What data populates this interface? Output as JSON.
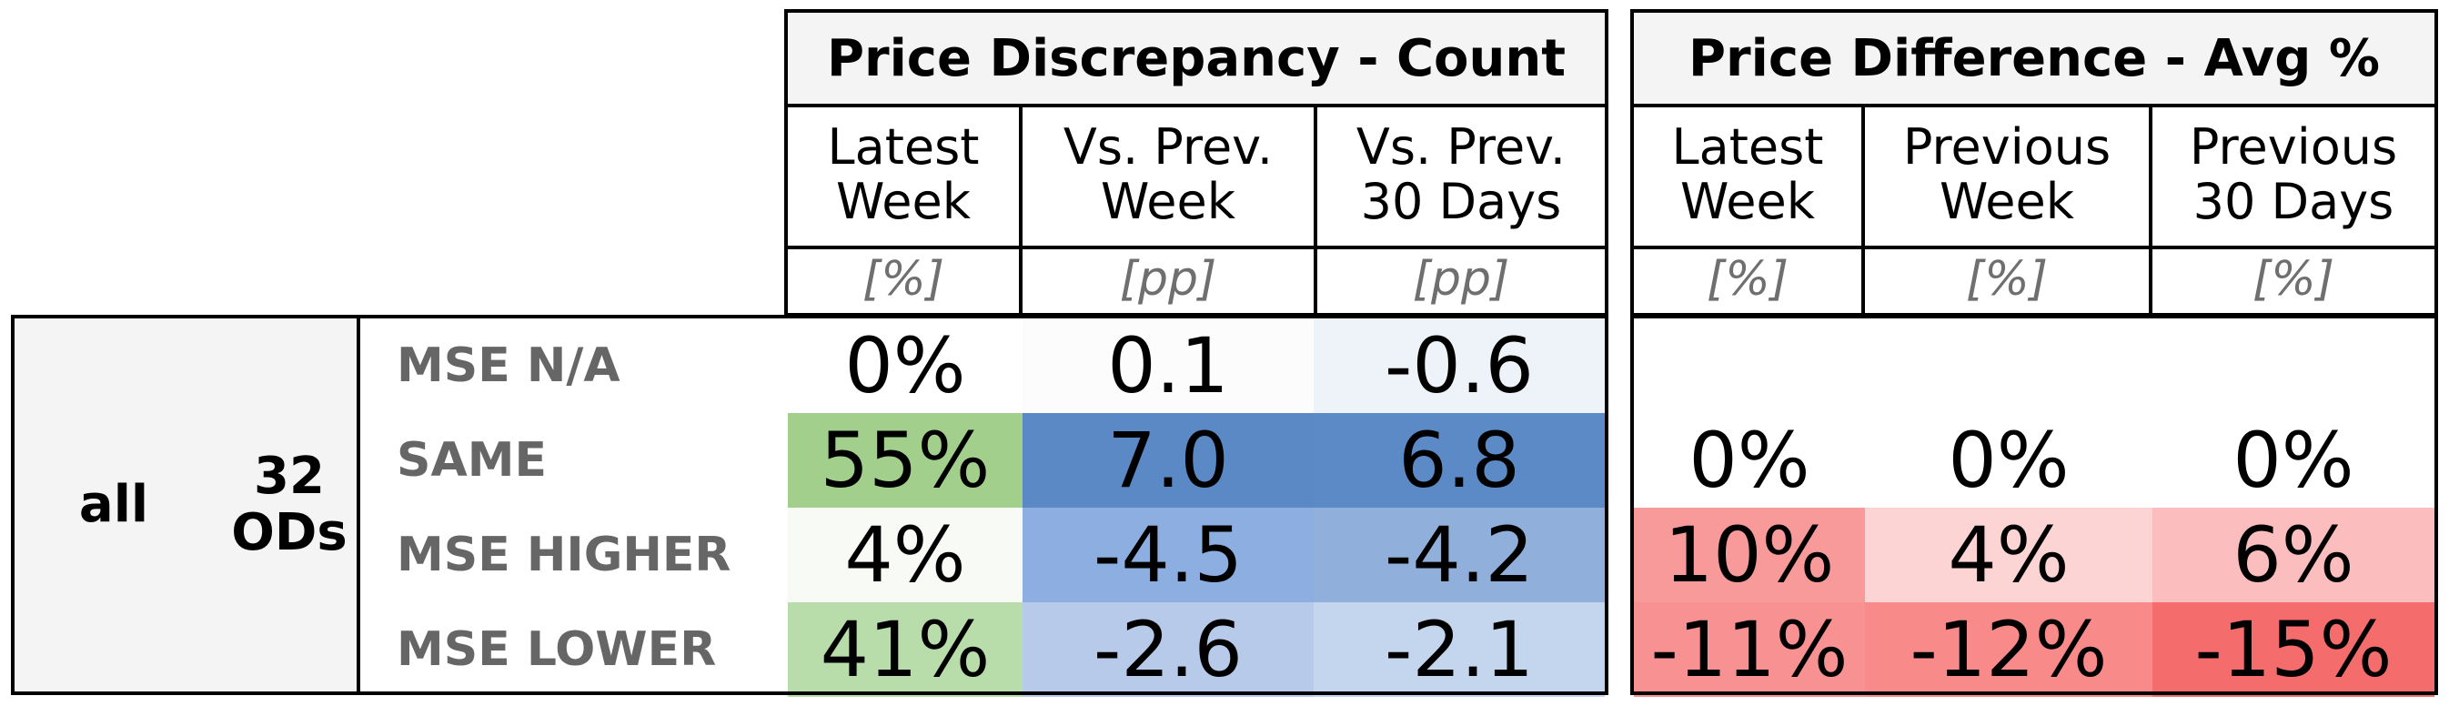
{
  "headers": {
    "group1": {
      "title": "Price Discrepancy - Count",
      "columns": [
        {
          "label": "Latest\nWeek",
          "unit": "[%]"
        },
        {
          "label": "Vs. Prev.\nWeek",
          "unit": "[pp]"
        },
        {
          "label": "Vs. Prev.\n30 Days",
          "unit": "[pp]"
        }
      ]
    },
    "group2": {
      "title": "Price Difference - Avg %",
      "columns": [
        {
          "label": "Latest\nWeek",
          "unit": "[%]"
        },
        {
          "label": "Previous\nWeek",
          "unit": "[%]"
        },
        {
          "label": "Previous\n30 Days",
          "unit": "[%]"
        }
      ]
    }
  },
  "side": {
    "segment": "all",
    "count": "32\nODs"
  },
  "rows": [
    {
      "label": "MSE N/A",
      "count": [
        "0%",
        "0.1",
        "-0.6"
      ],
      "count_colors": [
        "#ffffff",
        "#fdfcfd",
        "#eef2f9"
      ],
      "diff": [
        "",
        "",
        ""
      ],
      "diff_colors": [
        "#ffffff",
        "#ffffff",
        "#ffffff"
      ]
    },
    {
      "label": "SAME",
      "count": [
        "55%",
        "7.0",
        "6.8"
      ],
      "count_colors": [
        "#a2d08c",
        "#5b89c6",
        "#5c8ac6"
      ],
      "diff": [
        "0%",
        "0%",
        "0%"
      ],
      "diff_colors": [
        "#ffffff",
        "#ffffff",
        "#ffffff"
      ]
    },
    {
      "label": "MSE HIGHER",
      "count": [
        "4%",
        "-4.5",
        "-4.2"
      ],
      "count_colors": [
        "#f7faf5",
        "#8daee0",
        "#90afdb"
      ],
      "diff": [
        "10%",
        "4%",
        "6%"
      ],
      "diff_colors": [
        "#f89a9a",
        "#fcd4d4",
        "#fbbdbd"
      ]
    },
    {
      "label": "MSE LOWER",
      "count": [
        "41%",
        "-2.6",
        "-2.1"
      ],
      "count_colors": [
        "#b9dcab",
        "#b8cae9",
        "#c4d5ee"
      ],
      "diff": [
        "-11%",
        "-12%",
        "-15%"
      ],
      "diff_colors": [
        "#f89191",
        "#f88a8a",
        "#f56c6c"
      ]
    }
  ]
}
